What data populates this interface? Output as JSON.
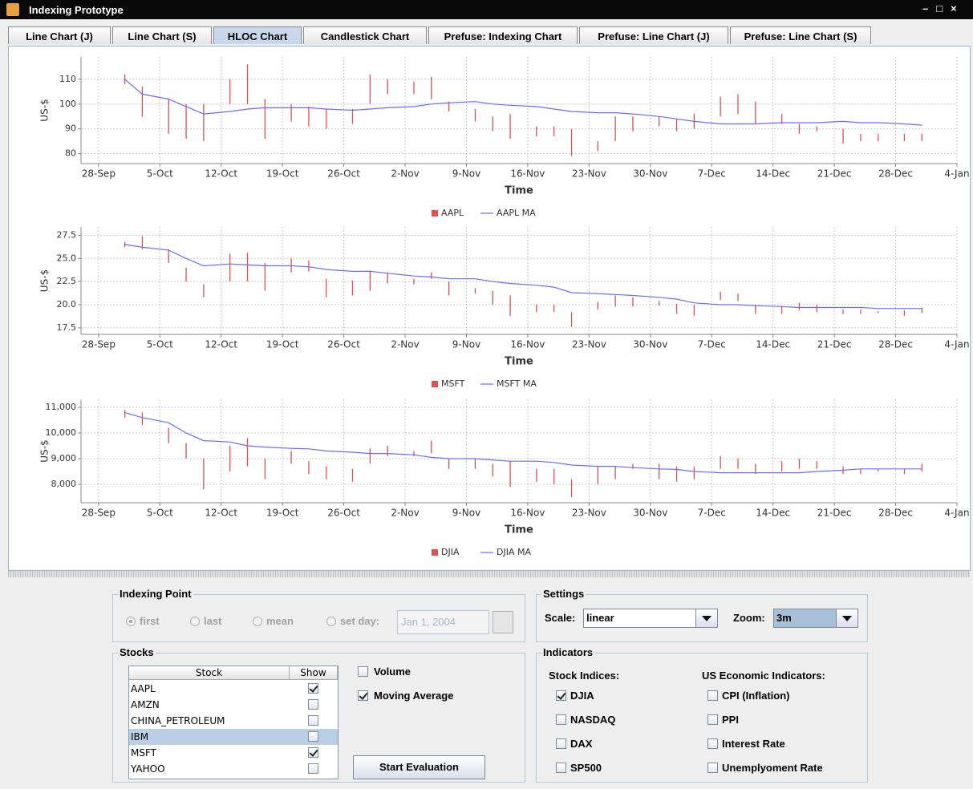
{
  "window_title": "Indexing Prototype",
  "tabs": [
    "Line Chart (J)",
    "Line Chart (S)",
    "HLOC Chart",
    "Candlestick Chart",
    "Prefuse: Indexing Chart",
    "Prefuse: Line Chart (J)",
    "Prefuse: Line Chart (S)"
  ],
  "chart_data": [
    {
      "type": "hloc",
      "y_label": "US-$",
      "x_label": "Time",
      "x": [
        "1-Oct",
        "3-Oct",
        "6-Oct",
        "8-Oct",
        "10-Oct",
        "13-Oct",
        "15-Oct",
        "17-Oct",
        "20-Oct",
        "22-Oct",
        "24-Oct",
        "27-Oct",
        "29-Oct",
        "31-Oct",
        "3-Nov",
        "5-Nov",
        "7-Nov",
        "10-Nov",
        "12-Nov",
        "14-Nov",
        "17-Nov",
        "19-Nov",
        "21-Nov",
        "24-Nov",
        "26-Nov",
        "28-Nov",
        "1-Dec",
        "3-Dec",
        "5-Dec",
        "8-Dec",
        "10-Dec",
        "12-Dec",
        "15-Dec",
        "17-Dec",
        "19-Dec",
        "22-Dec",
        "24-Dec",
        "26-Dec",
        "29-Dec",
        "31-Dec"
      ],
      "xlim": [
        "26-Sep",
        "4-Jan"
      ],
      "xticks": [
        "28-Sep",
        "5-Oct",
        "12-Oct",
        "19-Oct",
        "26-Oct",
        "2-Nov",
        "9-Nov",
        "16-Nov",
        "23-Nov",
        "30-Nov",
        "7-Dec",
        "14-Dec",
        "21-Dec",
        "28-Dec",
        "4-Jan"
      ],
      "ylim": [
        76,
        119
      ],
      "yticks": [
        80,
        90,
        100,
        110
      ],
      "grid": true,
      "series": [
        {
          "name": "AAPL",
          "color": "#e05050",
          "high": [
            112,
            107,
            102,
            100,
            100,
            110,
            116,
            102,
            100,
            99,
            98,
            98,
            112,
            110,
            109,
            111,
            101,
            98,
            95,
            96,
            91,
            91,
            90,
            85,
            95,
            95,
            95,
            94,
            96,
            103,
            104,
            101,
            96,
            92,
            91,
            90,
            88,
            88,
            88,
            88
          ],
          "low": [
            108,
            95,
            88,
            86,
            85,
            100,
            100,
            86,
            93,
            91,
            90,
            92,
            100,
            104,
            104,
            102,
            97,
            93,
            89,
            86,
            87,
            87,
            79,
            81,
            85,
            89,
            91,
            89,
            90,
            95,
            96,
            92,
            92,
            88,
            89,
            84,
            85,
            85,
            85,
            85
          ]
        },
        {
          "name": "AAPL MA",
          "color": "#6b6bff",
          "values": [
            110,
            104,
            102,
            99,
            96,
            97,
            98,
            98.5,
            98.5,
            98.5,
            98,
            97.5,
            98,
            98.5,
            99,
            100,
            100.5,
            101,
            100,
            99.5,
            99,
            98,
            97,
            96.5,
            96.5,
            96,
            95,
            94,
            93,
            92,
            92,
            92,
            92.5,
            92.5,
            92.5,
            93,
            92.5,
            92.5,
            92,
            91.5
          ]
        }
      ]
    },
    {
      "type": "hloc",
      "y_label": "US-$",
      "x_label": "Time",
      "x": [
        "1-Oct",
        "3-Oct",
        "6-Oct",
        "8-Oct",
        "10-Oct",
        "13-Oct",
        "15-Oct",
        "17-Oct",
        "20-Oct",
        "22-Oct",
        "24-Oct",
        "27-Oct",
        "29-Oct",
        "31-Oct",
        "3-Nov",
        "5-Nov",
        "7-Nov",
        "10-Nov",
        "12-Nov",
        "14-Nov",
        "17-Nov",
        "19-Nov",
        "21-Nov",
        "24-Nov",
        "26-Nov",
        "28-Nov",
        "1-Dec",
        "3-Dec",
        "5-Dec",
        "8-Dec",
        "10-Dec",
        "12-Dec",
        "15-Dec",
        "17-Dec",
        "19-Dec",
        "22-Dec",
        "24-Dec",
        "26-Dec",
        "29-Dec",
        "31-Dec"
      ],
      "xlim": [
        "26-Sep",
        "4-Jan"
      ],
      "xticks": [
        "28-Sep",
        "5-Oct",
        "12-Oct",
        "19-Oct",
        "26-Oct",
        "2-Nov",
        "9-Nov",
        "16-Nov",
        "23-Nov",
        "30-Nov",
        "7-Dec",
        "14-Dec",
        "21-Dec",
        "28-Dec",
        "4-Jan"
      ],
      "ylim": [
        16.8,
        28.4
      ],
      "yticks": [
        17.5,
        {
          "value": 20,
          "label": "20.0"
        },
        22.5,
        {
          "value": 25,
          "label": "25.0"
        },
        27.5
      ],
      "grid": true,
      "series": [
        {
          "name": "MSFT",
          "color": "#e05050",
          "high": [
            26.8,
            27.4,
            26,
            24,
            22.2,
            25.5,
            25.6,
            24.5,
            25,
            24.8,
            22.8,
            22.6,
            23.7,
            23.5,
            22.8,
            23.5,
            22.5,
            21.8,
            21.5,
            21,
            20,
            20,
            19.2,
            20.3,
            21,
            20.8,
            20.4,
            20.1,
            20,
            21.4,
            21.2,
            20,
            19.8,
            20.2,
            20,
            19.5,
            19.5,
            19.3,
            19.4,
            19.7
          ],
          "low": [
            26.2,
            26,
            24.5,
            22.5,
            20.8,
            22.5,
            22.5,
            21.5,
            23.5,
            23.6,
            20.8,
            21,
            21.5,
            22.3,
            22.2,
            22.8,
            21,
            21.2,
            20,
            18.8,
            19.2,
            19.2,
            17.6,
            19.5,
            19.8,
            19.8,
            19.9,
            19,
            18.8,
            20.5,
            20.4,
            19,
            19,
            19.4,
            19.2,
            19,
            19,
            19.1,
            18.8,
            19.1
          ]
        },
        {
          "name": "MSFT MA",
          "color": "#6b6bff",
          "values": [
            26.5,
            26.2,
            25.9,
            25,
            24.2,
            24.4,
            24.3,
            24.2,
            24.2,
            24.1,
            23.8,
            23.6,
            23.6,
            23.4,
            23.1,
            23,
            22.8,
            22.8,
            22.5,
            22.3,
            22.1,
            21.9,
            21.3,
            21.2,
            21.1,
            21,
            20.8,
            20.6,
            20.2,
            20,
            20,
            19.9,
            19.8,
            19.7,
            19.7,
            19.7,
            19.7,
            19.6,
            19.6,
            19.6
          ]
        }
      ]
    },
    {
      "type": "hloc",
      "y_label": "US-$",
      "x_label": "Time",
      "x": [
        "1-Oct",
        "3-Oct",
        "6-Oct",
        "8-Oct",
        "10-Oct",
        "13-Oct",
        "15-Oct",
        "17-Oct",
        "20-Oct",
        "22-Oct",
        "24-Oct",
        "27-Oct",
        "29-Oct",
        "31-Oct",
        "3-Nov",
        "5-Nov",
        "7-Nov",
        "10-Nov",
        "12-Nov",
        "14-Nov",
        "17-Nov",
        "19-Nov",
        "21-Nov",
        "24-Nov",
        "26-Nov",
        "28-Nov",
        "1-Dec",
        "3-Dec",
        "5-Dec",
        "8-Dec",
        "10-Dec",
        "12-Dec",
        "15-Dec",
        "17-Dec",
        "19-Dec",
        "22-Dec",
        "24-Dec",
        "26-Dec",
        "29-Dec",
        "31-Dec"
      ],
      "xlim": [
        "26-Sep",
        "4-Jan"
      ],
      "xticks": [
        "28-Sep",
        "5-Oct",
        "12-Oct",
        "19-Oct",
        "26-Oct",
        "2-Nov",
        "9-Nov",
        "16-Nov",
        "23-Nov",
        "30-Nov",
        "7-Dec",
        "14-Dec",
        "21-Dec",
        "28-Dec",
        "4-Jan"
      ],
      "ylim": [
        7281,
        11312
      ],
      "yticks": [
        {
          "value": 8000,
          "label": "8,000"
        },
        {
          "value": 9000,
          "label": "9,000"
        },
        {
          "value": 10000,
          "label": "10,000"
        },
        {
          "value": 11000,
          "label": "11,000"
        }
      ],
      "grid": true,
      "series": [
        {
          "name": "DJIA",
          "color": "#e05050",
          "high": [
            10900,
            10800,
            10200,
            9600,
            9000,
            9500,
            9800,
            9000,
            9300,
            8900,
            8700,
            8600,
            9400,
            9500,
            9300,
            9700,
            9000,
            9000,
            8800,
            8900,
            8600,
            8600,
            8200,
            8700,
            8700,
            8800,
            8800,
            8700,
            8700,
            9100,
            9000,
            8800,
            8900,
            9000,
            8900,
            8700,
            8600,
            8600,
            8600,
            8800
          ],
          "low": [
            10600,
            10300,
            9600,
            9000,
            7800,
            8500,
            8700,
            8200,
            8800,
            8400,
            8200,
            8100,
            8800,
            9100,
            9100,
            9200,
            8600,
            8600,
            8300,
            7900,
            8100,
            8000,
            7500,
            8000,
            8200,
            8600,
            8200,
            8100,
            8200,
            8600,
            8600,
            8400,
            8500,
            8600,
            8600,
            8400,
            8400,
            8500,
            8400,
            8500
          ]
        },
        {
          "name": "DJIA MA",
          "color": "#6b6bff",
          "values": [
            10800,
            10600,
            10400,
            10000,
            9700,
            9650,
            9500,
            9450,
            9400,
            9380,
            9300,
            9250,
            9200,
            9200,
            9150,
            9050,
            9000,
            9000,
            8950,
            8900,
            8900,
            8850,
            8750,
            8700,
            8700,
            8650,
            8600,
            8580,
            8500,
            8450,
            8450,
            8450,
            8450,
            8450,
            8500,
            8550,
            8600,
            8600,
            8600,
            8600
          ]
        }
      ]
    }
  ],
  "indexing_point": {
    "title": "Indexing Point",
    "options": [
      "first",
      "last",
      "mean",
      "set day:"
    ],
    "date": "Jan 1, 2004"
  },
  "settings": {
    "title": "Settings",
    "scale_label": "Scale:",
    "scale": "linear",
    "zoom_label": "Zoom:",
    "zoom": "3m"
  },
  "stocks": {
    "title": "Stocks",
    "headers": [
      "Stock",
      "Show"
    ],
    "rows": [
      {
        "name": "AAPL",
        "show": true
      },
      {
        "name": "AMZN",
        "show": false
      },
      {
        "name": "CHINA_PETROLEUM",
        "show": false
      },
      {
        "name": "IBM",
        "show": false
      },
      {
        "name": "MSFT",
        "show": true
      },
      {
        "name": "YAHOO",
        "show": false
      }
    ],
    "options": [
      {
        "label": "Volume",
        "checked": false
      },
      {
        "label": "Moving Average",
        "checked": true
      }
    ],
    "button": "Start Evaluation"
  },
  "indicators": {
    "title": "Indicators",
    "stock_indices": {
      "title": "Stock Indices:",
      "items": [
        {
          "label": "DJIA",
          "checked": true
        },
        {
          "label": "NASDAQ",
          "checked": false
        },
        {
          "label": "DAX",
          "checked": false
        },
        {
          "label": "SP500",
          "checked": false
        }
      ]
    },
    "economic": {
      "title": "US Economic Indicators:",
      "items": [
        {
          "label": "CPI (Inflation)",
          "checked": false
        },
        {
          "label": "PPI",
          "checked": false
        },
        {
          "label": "Interest Rate",
          "checked": false
        },
        {
          "label": "Unemplyoment Rate",
          "checked": false
        }
      ]
    }
  }
}
